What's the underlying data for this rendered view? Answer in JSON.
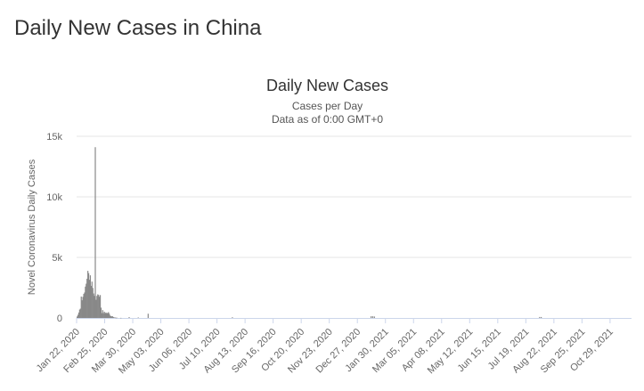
{
  "page": {
    "heading": "Daily New Cases in China"
  },
  "chart_data": {
    "type": "bar",
    "title": "Daily New Cases",
    "subtitle": "Cases per Day",
    "subtitle2": "Data as of 0:00 GMT+0",
    "ylabel": "Novel Coronavirus Daily Cases",
    "xlabel": "",
    "ylim": [
      0,
      15000
    ],
    "y_ticks": [
      0,
      5000,
      10000,
      15000
    ],
    "y_tick_labels": [
      "0",
      "5k",
      "10k",
      "15k"
    ],
    "x_range": [
      "2020-01-22",
      "2021-11-24"
    ],
    "x_tick_labels": [
      "Jan 22, 2020",
      "Feb 25, 2020",
      "Mar 30, 2020",
      "May 03, 2020",
      "Jun 06, 2020",
      "Jul 10, 2020",
      "Aug 13, 2020",
      "Sep 16, 2020",
      "Oct 20, 2020",
      "Nov 23, 2020",
      "Dec 27, 2020",
      "Jan 30, 2021",
      "Mar 05, 2021",
      "Apr 08, 2021",
      "May 12, 2021",
      "Jun 15, 2021",
      "Jul 19, 2021",
      "Aug 22, 2021",
      "Sep 25, 2021",
      "Oct 29, 2021"
    ],
    "grid": true,
    "bar_color": "#888888",
    "series": [
      {
        "x": [
          "2020-01-22",
          "2020-01-23",
          "2020-01-24",
          "2020-01-25",
          "2020-01-26",
          "2020-01-27",
          "2020-01-28",
          "2020-01-29",
          "2020-01-30",
          "2020-01-31",
          "2020-02-01",
          "2020-02-02",
          "2020-02-03",
          "2020-02-04",
          "2020-02-05",
          "2020-02-06",
          "2020-02-07",
          "2020-02-08",
          "2020-02-09",
          "2020-02-10",
          "2020-02-11",
          "2020-02-12",
          "2020-02-13",
          "2020-02-14",
          "2020-02-15",
          "2020-02-16",
          "2020-02-17",
          "2020-02-18",
          "2020-02-19",
          "2020-02-20",
          "2020-02-21",
          "2020-02-22",
          "2020-02-23",
          "2020-02-24",
          "2020-02-25",
          "2020-02-26",
          "2020-02-27",
          "2020-02-28",
          "2020-02-29",
          "2020-03-01",
          "2020-03-02",
          "2020-03-03",
          "2020-03-04",
          "2020-03-05",
          "2020-03-06",
          "2020-03-07",
          "2020-03-08",
          "2020-03-09",
          "2020-03-10",
          "2020-03-15",
          "2020-03-25",
          "2020-04-05",
          "2020-04-17",
          "2020-07-28",
          "2021-01-12",
          "2021-01-14",
          "2021-01-16",
          "2021-08-04",
          "2021-08-06"
        ],
        "values": [
          120,
          260,
          450,
          690,
          770,
          1770,
          1460,
          1740,
          1980,
          2100,
          2590,
          2830,
          3240,
          3890,
          3700,
          3150,
          3520,
          2650,
          3000,
          2480,
          2020,
          1820,
          1500,
          1500,
          1820,
          1950,
          1900,
          1750,
          1890,
          850,
          400,
          650,
          400,
          520,
          400,
          450,
          380,
          420,
          480,
          350,
          200,
          150,
          130,
          140,
          70,
          45,
          40,
          20,
          25,
          10,
          70,
          40,
          350,
          60,
          140,
          140,
          120,
          80,
          80
        ]
      },
      {
        "x": [
          "2020-02-13"
        ],
        "values": [
          14100
        ]
      }
    ]
  }
}
